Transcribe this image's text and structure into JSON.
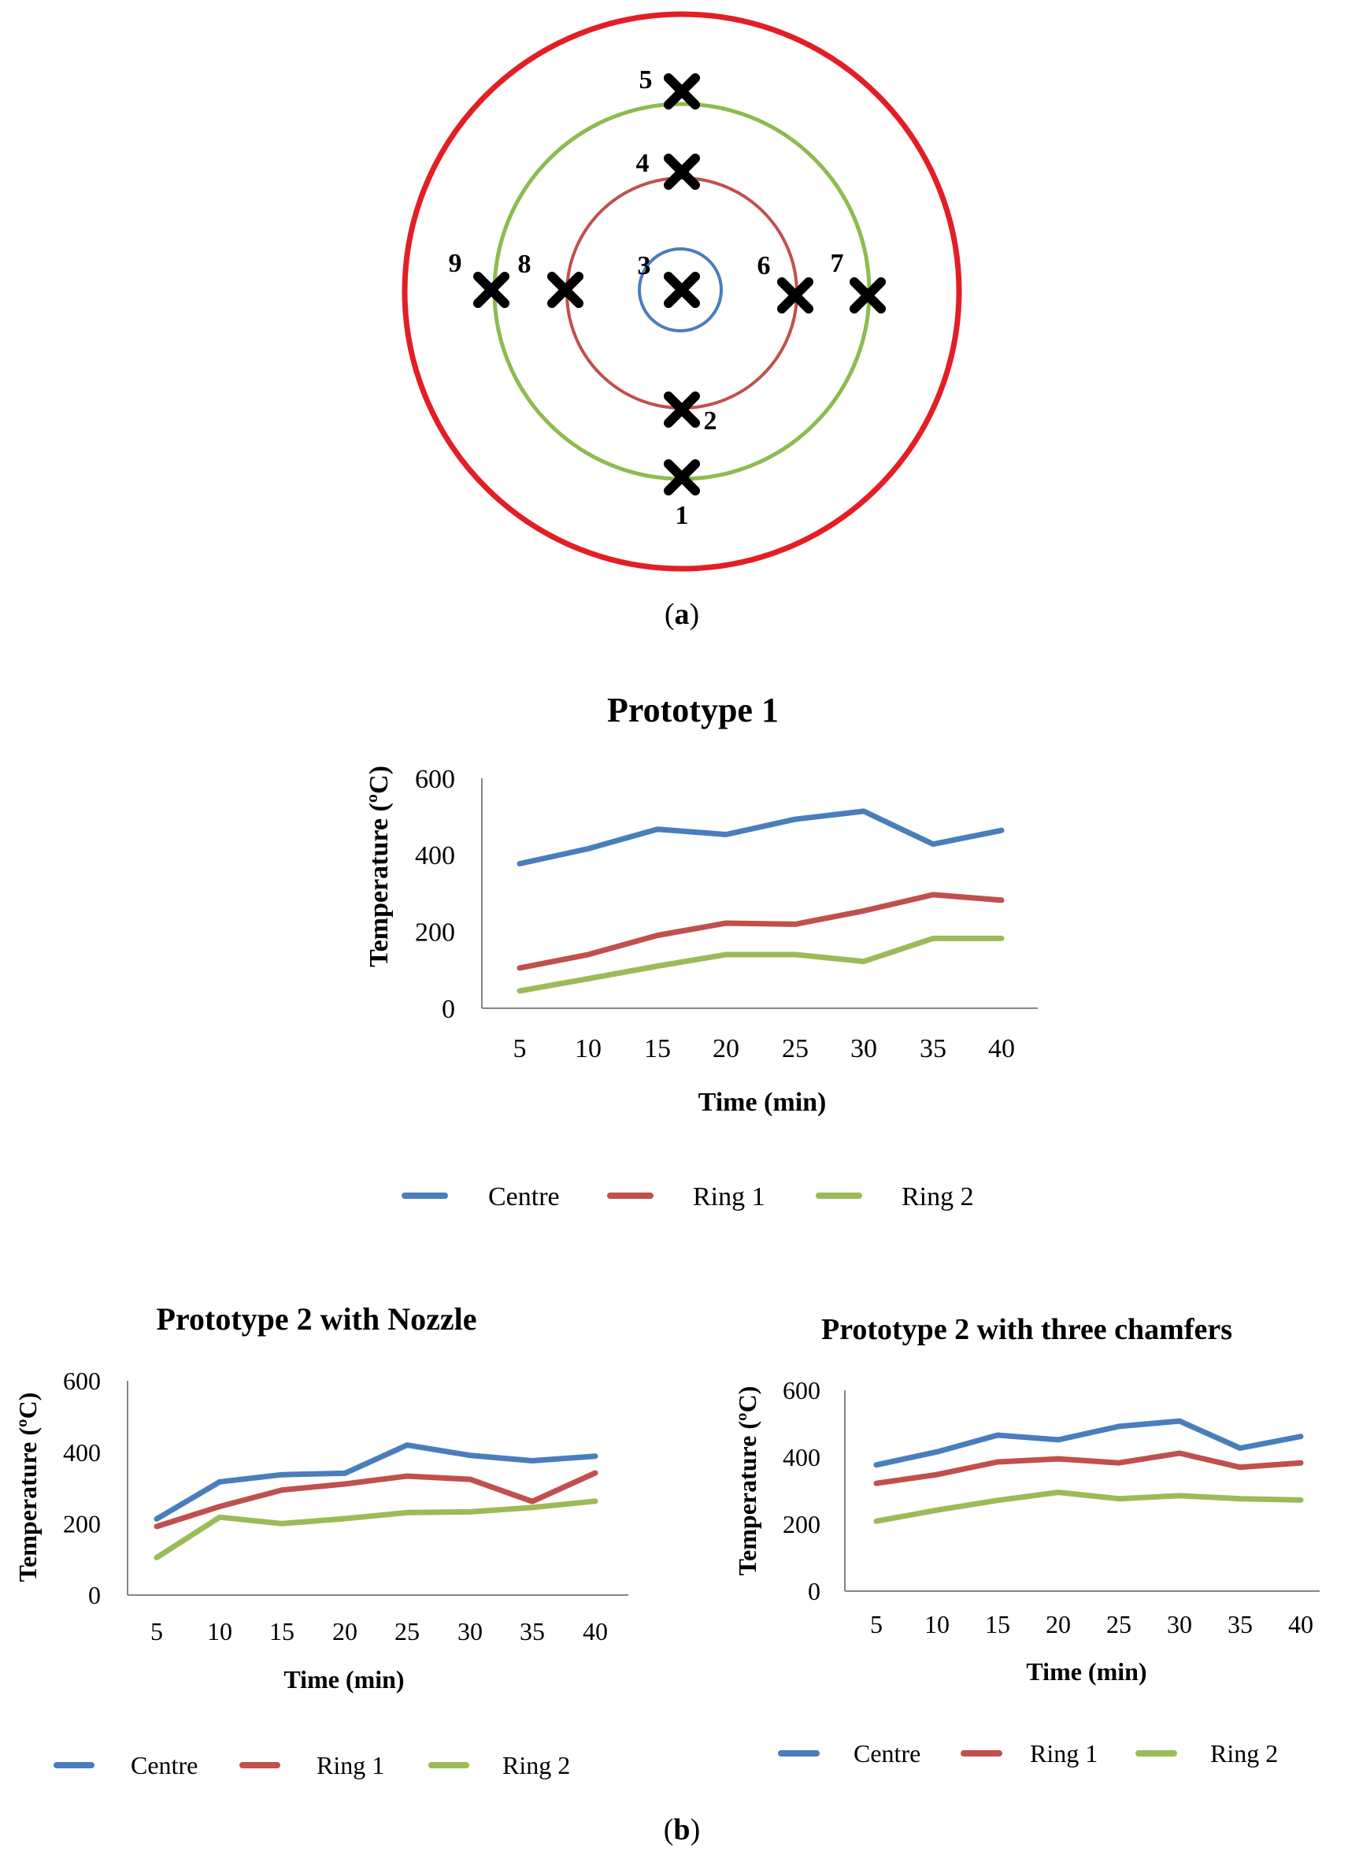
{
  "diagram": {
    "points": [
      {
        "id": "1",
        "label": "1",
        "ring": "ring-2"
      },
      {
        "id": "2",
        "label": "2",
        "ring": "ring-1"
      },
      {
        "id": "3",
        "label": "3",
        "ring": "centre"
      },
      {
        "id": "4",
        "label": "4",
        "ring": "ring-1"
      },
      {
        "id": "5",
        "label": "5",
        "ring": "ring-2"
      },
      {
        "id": "6",
        "label": "6",
        "ring": "ring-1"
      },
      {
        "id": "7",
        "label": "7",
        "ring": "ring-2"
      },
      {
        "id": "8",
        "label": "8",
        "ring": "ring-1"
      },
      {
        "id": "9",
        "label": "9",
        "ring": "ring-2"
      }
    ],
    "colors": {
      "outer": "#e31e24",
      "ring2": "#8dbb4f",
      "ring1": "#c0504d",
      "centre": "#4a7ebb",
      "marker": "#000000"
    }
  },
  "captions": {
    "a": "(a)",
    "a_open": "(",
    "a_letter": "a",
    "a_close": ")",
    "b": "(b)",
    "b_open": "(",
    "b_letter": "b",
    "b_close": ")"
  },
  "colors": {
    "Centre": "#4a7ebb",
    "Ring 1": "#c0504d",
    "Ring 2": "#9bbb59",
    "axis": "#868686"
  },
  "chart_data": [
    {
      "id": "prototype-1",
      "type": "line",
      "title": "Prototype 1",
      "xlabel": "Time (min)",
      "ylabel": "Temperature (ºC)",
      "categories": [
        "5",
        "10",
        "15",
        "20",
        "25",
        "30",
        "35",
        "40"
      ],
      "yticks": [
        "0",
        "200",
        "400",
        "600"
      ],
      "ylim": [
        0,
        600
      ],
      "series": [
        {
          "name": "Centre",
          "values": [
            377,
            416,
            467,
            453,
            493,
            514,
            428,
            464
          ]
        },
        {
          "name": "Ring 1",
          "values": [
            105,
            140,
            190,
            222,
            219,
            254,
            296,
            282
          ]
        },
        {
          "name": "Ring 2",
          "values": [
            45,
            77,
            110,
            140,
            140,
            122,
            182,
            182
          ]
        }
      ]
    },
    {
      "id": "prototype-2-nozzle",
      "type": "line",
      "title": "Prototype 2 with Nozzle",
      "xlabel": "Time (min)",
      "ylabel": "Temperature (ºC)",
      "categories": [
        "5",
        "10",
        "15",
        "20",
        "25",
        "30",
        "35",
        "40"
      ],
      "yticks": [
        "0",
        "200",
        "400",
        "600"
      ],
      "ylim": [
        0,
        600
      ],
      "series": [
        {
          "name": "Centre",
          "values": [
            213,
            317,
            337,
            341,
            420,
            391,
            376,
            389
          ]
        },
        {
          "name": "Ring 1",
          "values": [
            192,
            248,
            294,
            311,
            333,
            324,
            262,
            342
          ]
        },
        {
          "name": "Ring 2",
          "values": [
            105,
            218,
            200,
            214,
            231,
            233,
            245,
            263
          ]
        }
      ]
    },
    {
      "id": "prototype-2-chamfers",
      "type": "line",
      "title": "Prototype 2 with three chamfers",
      "xlabel": "Time (min)",
      "ylabel": "Temperature (ºC)",
      "categories": [
        "5",
        "10",
        "15",
        "20",
        "25",
        "30",
        "35",
        "40"
      ],
      "yticks": [
        "0",
        "200",
        "400",
        "600"
      ],
      "ylim": [
        0,
        600
      ],
      "series": [
        {
          "name": "Centre",
          "values": [
            377,
            416,
            466,
            452,
            492,
            508,
            427,
            462
          ]
        },
        {
          "name": "Ring 1",
          "values": [
            322,
            348,
            386,
            395,
            383,
            412,
            370,
            383
          ]
        },
        {
          "name": "Ring 2",
          "values": [
            209,
            242,
            271,
            295,
            276,
            285,
            276,
            272
          ]
        }
      ]
    }
  ]
}
